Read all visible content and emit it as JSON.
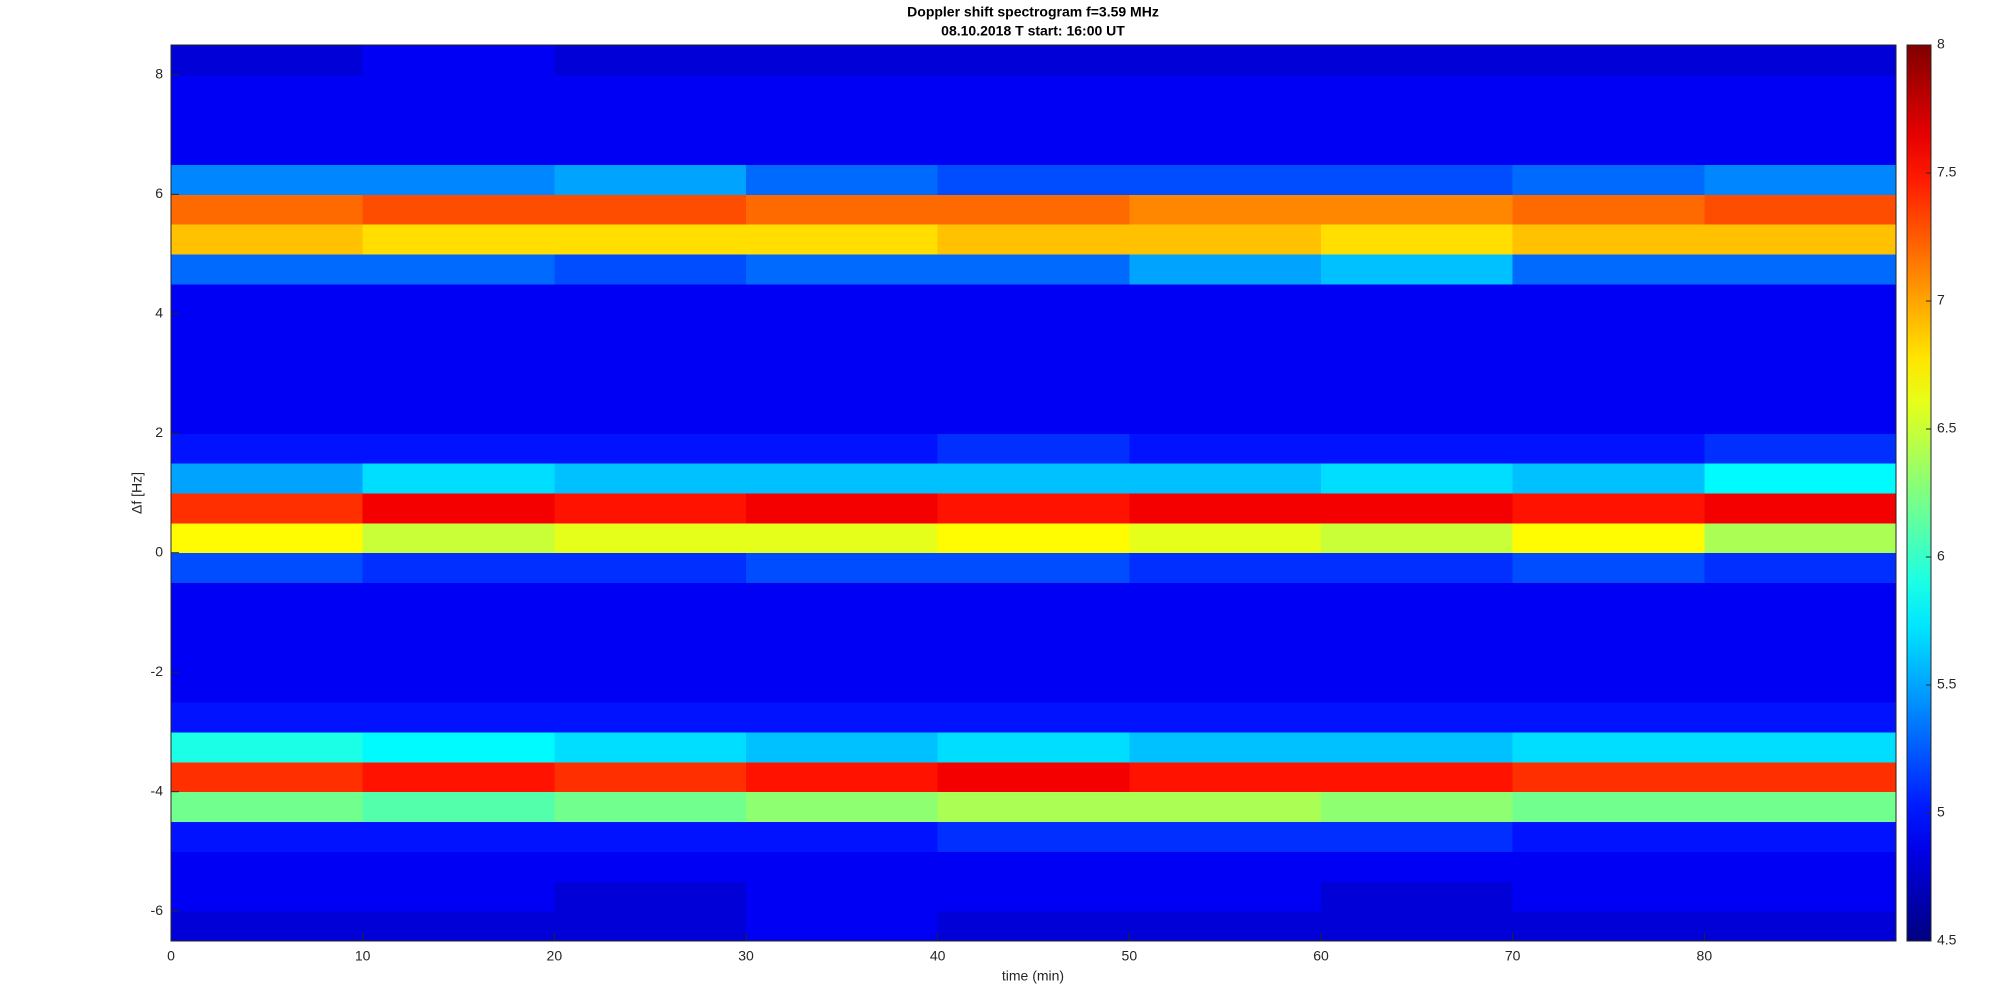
{
  "chart_data": {
    "type": "heatmap",
    "title": "Doppler shift spectrogram f=3.59 MHz",
    "subtitle": "08.10.2018   T start: 16:00 UT",
    "xlabel": "time (min)",
    "ylabel": "Δf [Hz]",
    "colormap": "jet",
    "x": [
      0,
      10,
      20,
      30,
      40,
      50,
      60,
      70,
      80,
      90
    ],
    "y": [
      -6.5,
      -6,
      -5.5,
      -5,
      -4.5,
      -4,
      -3.5,
      -3,
      -2.5,
      -2,
      -1.5,
      -1,
      -0.5,
      0,
      0.5,
      1,
      1.5,
      2,
      2.5,
      3,
      3.5,
      4,
      4.5,
      5,
      5.5,
      6,
      6.5,
      7,
      7.5,
      8,
      8.5
    ],
    "z": [
      [
        4.8,
        4.8,
        4.8,
        4.9,
        4.8,
        4.8,
        4.8,
        4.8,
        4.8
      ],
      [
        4.9,
        4.9,
        4.8,
        4.9,
        4.9,
        4.9,
        4.8,
        4.9,
        4.9
      ],
      [
        4.9,
        4.9,
        4.9,
        4.9,
        4.9,
        4.9,
        4.9,
        4.9,
        4.9
      ],
      [
        5.0,
        5.0,
        5.0,
        5.0,
        5.1,
        5.1,
        5.1,
        5.0,
        5.0
      ],
      [
        6.2,
        6.1,
        6.2,
        6.3,
        6.4,
        6.4,
        6.3,
        6.2,
        6.2
      ],
      [
        7.4,
        7.5,
        7.4,
        7.5,
        7.6,
        7.5,
        7.5,
        7.4,
        7.4
      ],
      [
        5.9,
        5.8,
        5.7,
        5.6,
        5.7,
        5.6,
        5.6,
        5.7,
        5.7
      ],
      [
        5.0,
        5.0,
        5.0,
        5.0,
        5.0,
        5.0,
        5.0,
        5.0,
        5.0
      ],
      [
        4.9,
        4.9,
        4.9,
        4.9,
        4.9,
        4.9,
        4.9,
        4.9,
        4.9
      ],
      [
        4.9,
        4.9,
        4.9,
        4.9,
        4.9,
        4.9,
        4.9,
        4.9,
        4.9
      ],
      [
        4.9,
        4.9,
        4.9,
        4.9,
        4.9,
        4.9,
        4.9,
        4.9,
        4.9
      ],
      [
        4.9,
        4.9,
        4.9,
        4.9,
        4.9,
        4.9,
        4.9,
        4.9,
        4.9
      ],
      [
        5.2,
        5.1,
        5.1,
        5.2,
        5.2,
        5.1,
        5.1,
        5.2,
        5.1
      ],
      [
        6.7,
        6.5,
        6.6,
        6.6,
        6.7,
        6.6,
        6.5,
        6.7,
        6.4
      ],
      [
        7.4,
        7.6,
        7.5,
        7.6,
        7.5,
        7.6,
        7.6,
        7.5,
        7.6
      ],
      [
        5.5,
        5.7,
        5.6,
        5.6,
        5.6,
        5.6,
        5.7,
        5.6,
        5.8
      ],
      [
        5.0,
        5.0,
        5.0,
        5.0,
        5.1,
        5.0,
        5.0,
        5.0,
        5.1
      ],
      [
        4.9,
        4.9,
        4.9,
        4.9,
        4.9,
        4.9,
        4.9,
        4.9,
        4.9
      ],
      [
        4.9,
        4.9,
        4.9,
        4.9,
        4.9,
        4.9,
        4.9,
        4.9,
        4.9
      ],
      [
        4.9,
        4.9,
        4.9,
        4.9,
        4.9,
        4.9,
        4.9,
        4.9,
        4.9
      ],
      [
        4.9,
        4.9,
        4.9,
        4.9,
        4.9,
        4.9,
        4.9,
        4.9,
        4.9
      ],
      [
        4.9,
        4.9,
        4.9,
        4.9,
        4.9,
        4.9,
        4.9,
        4.9,
        4.9
      ],
      [
        5.3,
        5.3,
        5.2,
        5.3,
        5.3,
        5.5,
        5.6,
        5.3,
        5.3
      ],
      [
        6.9,
        6.8,
        6.8,
        6.8,
        6.9,
        6.9,
        6.8,
        6.9,
        6.9
      ],
      [
        7.2,
        7.3,
        7.3,
        7.2,
        7.2,
        7.1,
        7.1,
        7.2,
        7.3
      ],
      [
        5.4,
        5.4,
        5.5,
        5.3,
        5.2,
        5.2,
        5.2,
        5.3,
        5.4
      ],
      [
        4.9,
        4.9,
        4.9,
        4.9,
        4.9,
        4.9,
        4.9,
        4.9,
        4.9
      ],
      [
        4.9,
        4.9,
        4.9,
        4.9,
        4.9,
        4.9,
        4.9,
        4.9,
        4.9
      ],
      [
        4.9,
        4.9,
        4.9,
        4.9,
        4.9,
        4.9,
        4.9,
        4.9,
        4.9
      ],
      [
        4.8,
        4.9,
        4.8,
        4.8,
        4.8,
        4.8,
        4.8,
        4.8,
        4.8
      ]
    ],
    "xlim": [
      0,
      90
    ],
    "xticks": [
      0,
      10,
      20,
      30,
      40,
      50,
      60,
      70,
      80
    ],
    "ylim": [
      -6.5,
      8.5
    ],
    "yticks": [
      -6,
      -4,
      -2,
      0,
      2,
      4,
      6,
      8
    ],
    "clim": [
      4.5,
      8
    ],
    "cticks": [
      4.5,
      5,
      5.5,
      6,
      6.5,
      7,
      7.5,
      8
    ]
  }
}
